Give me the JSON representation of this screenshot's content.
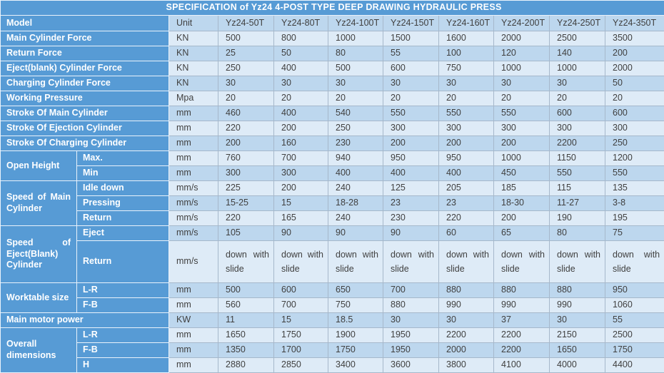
{
  "title": "SPECIFICATION of Yz24 4-POST TYPE DEEP DRAWING HYDRAULIC PRESS",
  "colors": {
    "header_blue": "#579BD5",
    "band_light": "#DEEBF7",
    "band_dark": "#BDD7EE",
    "data_text": "#404040",
    "label_text": "#FFFFFF"
  },
  "table": {
    "model_label": "Model",
    "unit_label": "Unit",
    "models": [
      "Yz24-50T",
      "Yz24-80T",
      "Yz24-100T",
      "Yz24-150T",
      "Yz24-160T",
      "Yz24-200T",
      "Yz24-250T",
      "Yz24-350T"
    ],
    "rows": [
      {
        "label": "Main Cylinder Force",
        "unit": "KN",
        "values": [
          "500",
          "800",
          "1000",
          "1500",
          "1600",
          "2000",
          "2500",
          "3500"
        ]
      },
      {
        "label": "Return Force",
        "unit": "KN",
        "values": [
          "25",
          "50",
          "80",
          "55",
          "100",
          "120",
          "140",
          "200"
        ]
      },
      {
        "label": "Eject(blank) Cylinder Force",
        "unit": "KN",
        "values": [
          "250",
          "400",
          "500",
          "600",
          "750",
          "1000",
          "1000",
          "2000"
        ]
      },
      {
        "label": "Charging Cylinder Force",
        "unit": "KN",
        "values": [
          "30",
          "30",
          "30",
          "30",
          "30",
          "30",
          "30",
          "50"
        ]
      },
      {
        "label": "Working Pressure",
        "unit": "Mpa",
        "values": [
          "20",
          "20",
          "20",
          "20",
          "20",
          "20",
          "20",
          "20"
        ]
      },
      {
        "label": "Stroke Of Main Cylinder",
        "unit": "mm",
        "values": [
          "460",
          "400",
          "540",
          "550",
          "550",
          "550",
          "600",
          "600"
        ]
      },
      {
        "label": "Stroke Of Ejection Cylinder",
        "unit": "mm",
        "values": [
          "220",
          "200",
          "250",
          "300",
          "300",
          "300",
          "300",
          "300"
        ]
      },
      {
        "label": "Stroke Of Charging Cylinder",
        "unit": "mm",
        "values": [
          "200",
          "160",
          "230",
          "200",
          "200",
          "200",
          "2200",
          "250"
        ]
      },
      {
        "group": "Open Height",
        "span": 2,
        "sub": "Max.",
        "unit": "mm",
        "values": [
          "760",
          "700",
          "940",
          "950",
          "950",
          "1000",
          "1150",
          "1200"
        ]
      },
      {
        "sub": "Min",
        "unit": "mm",
        "values": [
          "300",
          "300",
          "400",
          "400",
          "400",
          "450",
          "550",
          "550"
        ]
      },
      {
        "group": "Speed of Main Cylinder",
        "span": 3,
        "sub": "Idle down",
        "unit": "mm/s",
        "values": [
          "225",
          "200",
          "240",
          "125",
          "205",
          "185",
          "115",
          "135"
        ]
      },
      {
        "sub": "Pressing",
        "unit": "mm/s",
        "values": [
          "15-25",
          "15",
          "18-28",
          "23",
          "23",
          "18-30",
          "11-27",
          "3-8"
        ]
      },
      {
        "sub": "Return",
        "unit": "mm/s",
        "values": [
          "220",
          "165",
          "240",
          "230",
          "220",
          "200",
          "190",
          "195"
        ]
      },
      {
        "group": "Speed of Eject(Blank) Cylinder",
        "span": 2,
        "sub": "Eject",
        "unit": "mm/s",
        "values": [
          "105",
          "90",
          "90",
          "90",
          "60",
          "65",
          "80",
          "75"
        ]
      },
      {
        "sub": "Return",
        "unit": "mm/s",
        "values": [
          "down with slide",
          "down with slide",
          "down with slide",
          "down with slide",
          "down with slide",
          "down with slide",
          "down with slide",
          "down with slide"
        ]
      },
      {
        "group": "Worktable size",
        "span": 2,
        "sub": "L-R",
        "unit": "mm",
        "values": [
          "500",
          "600",
          "650",
          "700",
          "880",
          "880",
          "880",
          "950"
        ]
      },
      {
        "sub": "F-B",
        "unit": "mm",
        "values": [
          "560",
          "700",
          "750",
          "880",
          "990",
          "990",
          "990",
          "1060"
        ]
      },
      {
        "label": "Main motor power",
        "unit": "KW",
        "values": [
          "11",
          "15",
          "18.5",
          "30",
          "30",
          "37",
          "30",
          "55"
        ]
      },
      {
        "group": "Overall dimensions",
        "span": 3,
        "sub": "L-R",
        "unit": "mm",
        "values": [
          "1650",
          "1750",
          "1900",
          "1950",
          "2200",
          "2200",
          "2150",
          "2500"
        ]
      },
      {
        "sub": "F-B",
        "unit": "mm",
        "values": [
          "1350",
          "1700",
          "1750",
          "1950",
          "2000",
          "2200",
          "1650",
          "1750"
        ]
      },
      {
        "sub": "H",
        "unit": "mm",
        "values": [
          "2880",
          "2850",
          "3400",
          "3600",
          "3800",
          "4100",
          "4000",
          "4400"
        ]
      }
    ]
  }
}
